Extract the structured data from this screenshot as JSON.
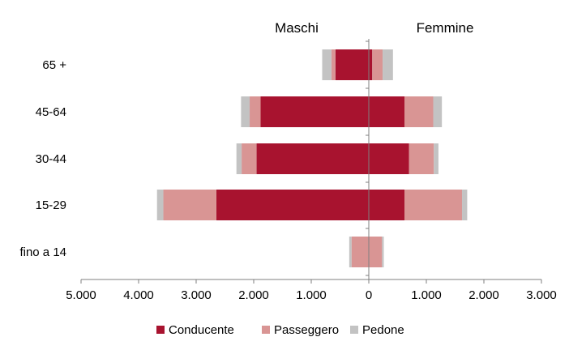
{
  "chart_data": {
    "type": "bar",
    "orientation": "horizontal",
    "stacked": true,
    "diverging": true,
    "header_left": "Maschi",
    "header_right": "Femmine",
    "categories": [
      "65 +",
      "45-64",
      "30-44",
      "15-29",
      "fino a 14"
    ],
    "x_ticks": [
      "5.000",
      "4.000",
      "3.000",
      "2.000",
      "1.000",
      "0",
      "1.000",
      "2.000",
      "3.000"
    ],
    "xlim": [
      -5000,
      3000
    ],
    "grid": false,
    "legend_position": "bottom",
    "series": [
      {
        "name": "Conducente",
        "color": "#a8132f",
        "maschi": [
          580,
          1880,
          1950,
          2650,
          0
        ],
        "femmine": [
          60,
          620,
          700,
          620,
          0
        ]
      },
      {
        "name": "Passeggero",
        "color": "#d99594",
        "maschi": [
          70,
          190,
          260,
          920,
          300
        ],
        "femmine": [
          180,
          500,
          430,
          1000,
          230
        ]
      },
      {
        "name": "Pedone",
        "color": "#c3c3c3",
        "maschi": [
          160,
          150,
          90,
          110,
          40
        ],
        "femmine": [
          180,
          150,
          80,
          90,
          30
        ]
      }
    ]
  }
}
